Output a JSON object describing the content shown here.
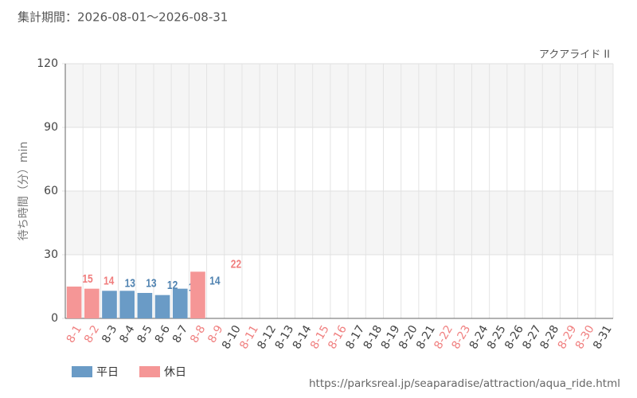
{
  "header": "集計期間：2026-08-01～2026-08-31",
  "footer": "https://parksreal.jp/seaparadise/attraction/aqua_ride.html",
  "chart_data": {
    "type": "bar",
    "subtitle": "アクアライド II",
    "y_label": "待ち時間（分）min",
    "categories": [
      "8-1",
      "8-2",
      "8-3",
      "8-4",
      "8-5",
      "8-6",
      "8-7",
      "8-8",
      "8-9",
      "8-10",
      "8-11",
      "8-12",
      "8-13",
      "8-14",
      "8-15",
      "8-16",
      "8-17",
      "8-18",
      "8-19",
      "8-20",
      "8-21",
      "8-22",
      "8-23",
      "8-24",
      "8-25",
      "8-26",
      "8-27",
      "8-28",
      "8-29",
      "8-30",
      "8-31"
    ],
    "category_colors": [
      "#f08080",
      "#f08080",
      "#444444",
      "#444444",
      "#444444",
      "#444444",
      "#444444",
      "#f08080",
      "#f08080",
      "#444444",
      "#f08080",
      "#444444",
      "#444444",
      "#444444",
      "#f08080",
      "#f08080",
      "#444444",
      "#444444",
      "#444444",
      "#444444",
      "#444444",
      "#f08080",
      "#f08080",
      "#444444",
      "#444444",
      "#444444",
      "#444444",
      "#444444",
      "#f08080",
      "#f08080",
      "#444444"
    ],
    "series": [
      {
        "name": "平日",
        "color": "#6a9bc6",
        "label_color": "#4f82b0",
        "values": [
          null,
          null,
          13,
          13,
          12,
          11,
          14,
          null,
          null,
          null,
          null,
          null,
          null,
          null,
          null,
          null,
          null,
          null,
          null,
          null,
          null,
          null,
          null,
          null,
          null,
          null,
          null,
          null,
          null,
          null,
          null
        ]
      },
      {
        "name": "休日",
        "color": "#f59696",
        "label_color": "#f07c7c",
        "values": [
          15,
          14,
          null,
          null,
          null,
          null,
          null,
          22,
          null,
          null,
          null,
          null,
          null,
          null,
          null,
          null,
          null,
          null,
          null,
          null,
          null,
          null,
          null,
          null,
          null,
          null,
          null,
          null,
          null,
          null,
          null
        ]
      }
    ],
    "ylim": [
      0,
      120
    ],
    "yticks": [
      0,
      30,
      60,
      90,
      120
    ],
    "grid": true
  }
}
